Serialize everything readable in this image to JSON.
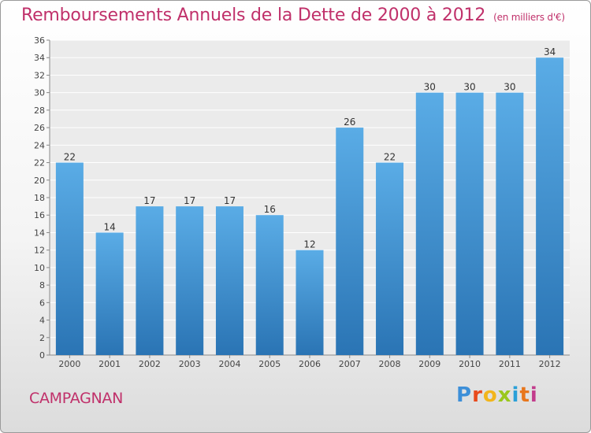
{
  "title": "Remboursements Annuels de la Dette de 2000 à 2012",
  "subtitle": "(en milliers d'€)",
  "commune": "CAMPAGNAN",
  "brand": {
    "letters": [
      "P",
      "r",
      "o",
      "x",
      "i",
      "t",
      "i"
    ],
    "colors": [
      "#3d8fd8",
      "#e84a1c",
      "#f2b51b",
      "#9ac71c",
      "#2aa0d8",
      "#e8761c",
      "#c23c8c"
    ]
  },
  "colors": {
    "bar_top": "#5aace6",
    "bar_bottom": "#2a74b4",
    "title": "#c0306a"
  },
  "chart_data": {
    "type": "bar",
    "title": "Remboursements Annuels de la Dette de 2000 à 2012",
    "xlabel": "",
    "ylabel": "",
    "categories": [
      "2000",
      "2001",
      "2002",
      "2003",
      "2004",
      "2005",
      "2006",
      "2007",
      "2008",
      "2009",
      "2010",
      "2011",
      "2012"
    ],
    "values": [
      22,
      14,
      17,
      17,
      17,
      16,
      12,
      26,
      22,
      30,
      30,
      30,
      34
    ],
    "ylim": [
      0,
      36
    ],
    "yticks": [
      0,
      2,
      4,
      6,
      8,
      10,
      12,
      14,
      16,
      18,
      20,
      22,
      24,
      26,
      28,
      30,
      32,
      34,
      36
    ],
    "grid": true
  }
}
